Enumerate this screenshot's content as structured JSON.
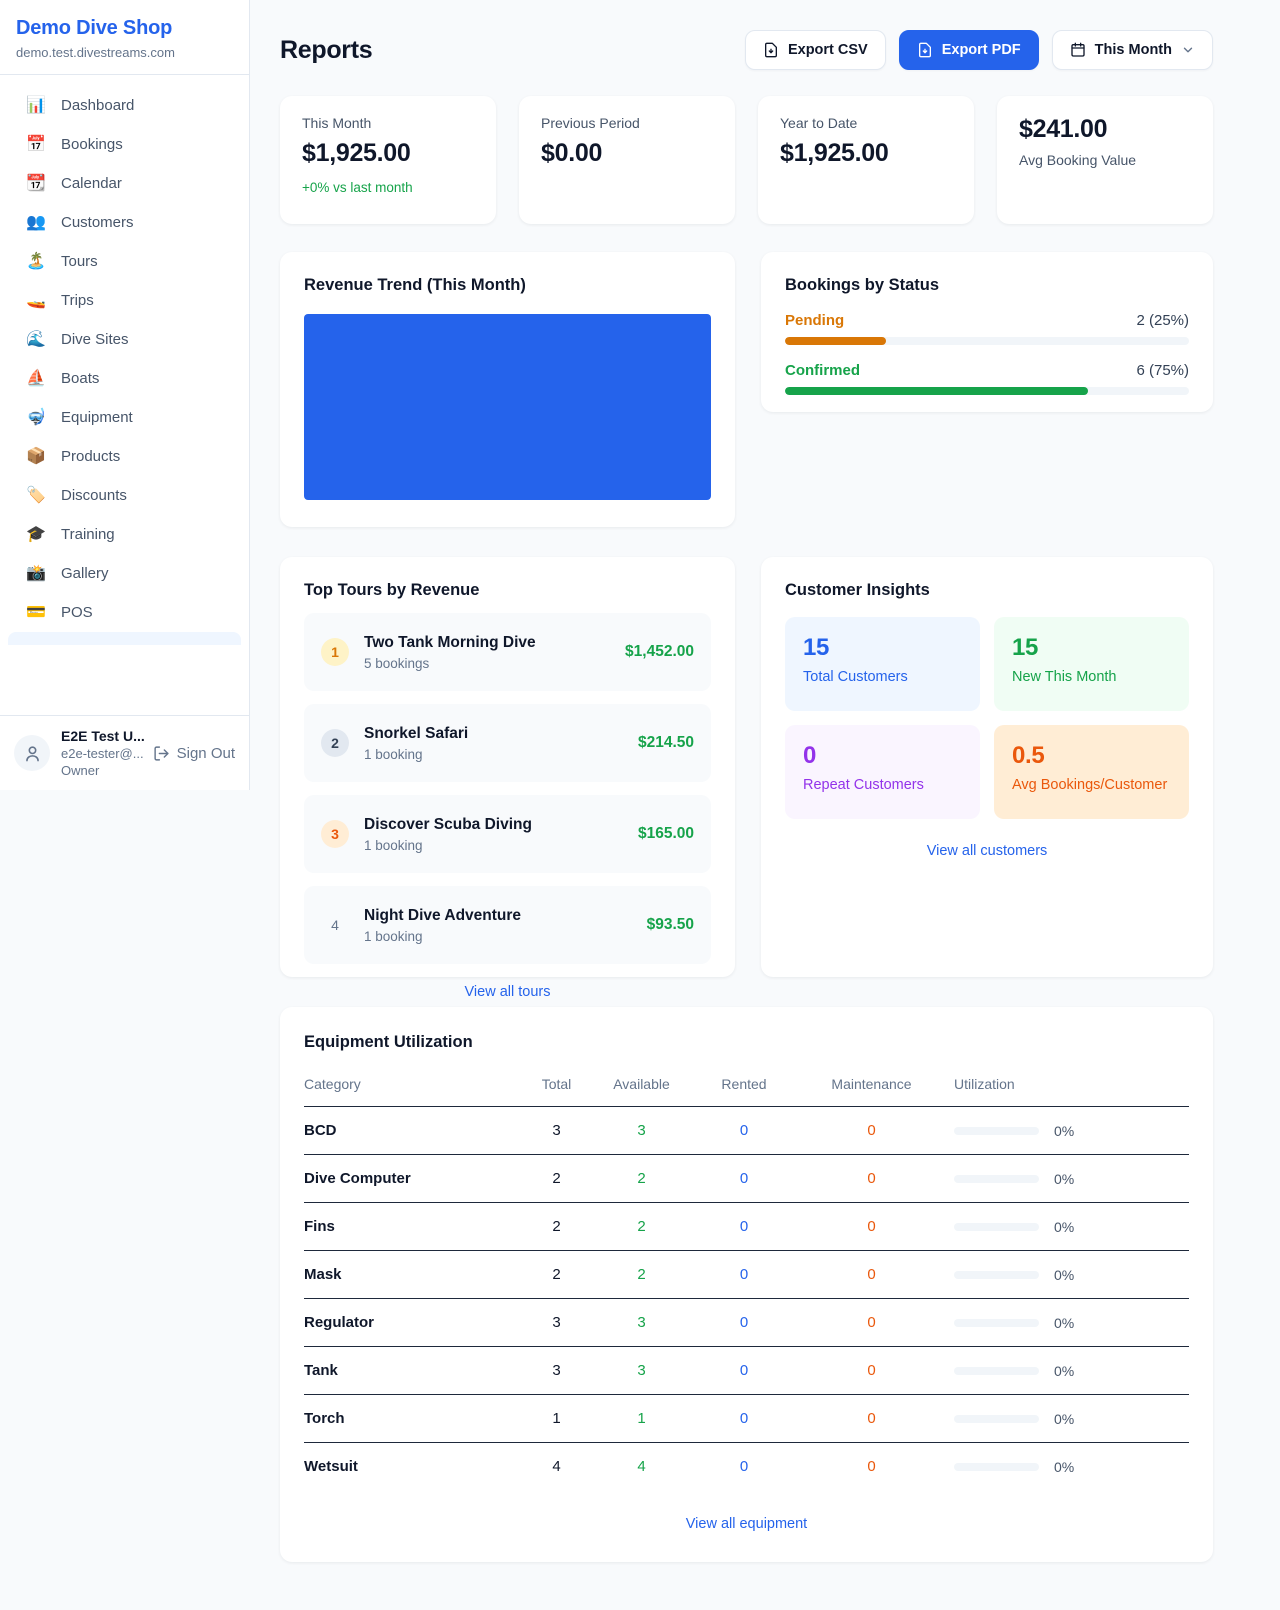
{
  "colors": {
    "accent": "#2563eb",
    "green": "#16a34a",
    "amber": "#d97706",
    "orange": "#ea580c",
    "purple": "#9333ea",
    "chart_fill": "#2563eb"
  },
  "sidebar": {
    "shop_name": "Demo Dive Shop",
    "shop_domain": "demo.test.divestreams.com",
    "items": [
      {
        "label": "Dashboard",
        "icon": "📊"
      },
      {
        "label": "Bookings",
        "icon": "📅"
      },
      {
        "label": "Calendar",
        "icon": "📆"
      },
      {
        "label": "Customers",
        "icon": "👥"
      },
      {
        "label": "Tours",
        "icon": "🏝️"
      },
      {
        "label": "Trips",
        "icon": "🚤"
      },
      {
        "label": "Dive Sites",
        "icon": "🌊"
      },
      {
        "label": "Boats",
        "icon": "⛵"
      },
      {
        "label": "Equipment",
        "icon": "🤿"
      },
      {
        "label": "Products",
        "icon": "📦"
      },
      {
        "label": "Discounts",
        "icon": "🏷️"
      },
      {
        "label": "Training",
        "icon": "🎓"
      },
      {
        "label": "Gallery",
        "icon": "📸"
      },
      {
        "label": "POS",
        "icon": "💳"
      }
    ],
    "user": {
      "name": "E2E Test U...",
      "email": "e2e-tester@...",
      "role": "Owner",
      "sign_out": "Sign Out"
    }
  },
  "header": {
    "title": "Reports",
    "export_csv": "Export CSV",
    "export_pdf": "Export PDF",
    "period": "This Month"
  },
  "stats": [
    {
      "label": "This Month",
      "value": "$1,925.00",
      "delta": "+0% vs last month"
    },
    {
      "label": "Previous Period",
      "value": "$0.00"
    },
    {
      "label": "Year to Date",
      "value": "$1,925.00"
    },
    {
      "label": "Avg Booking Value",
      "value": "$241.00"
    }
  ],
  "revenue_trend": {
    "title": "Revenue Trend (This Month)"
  },
  "bookings_by_status": {
    "title": "Bookings by Status",
    "rows": [
      {
        "label": "Pending",
        "value": "2 (25%)",
        "percent": 25
      },
      {
        "label": "Confirmed",
        "value": "6 (75%)",
        "percent": 75
      }
    ]
  },
  "top_tours": {
    "title": "Top Tours by Revenue",
    "view_all": "View all tours",
    "rows": [
      {
        "rank": "1",
        "name": "Two Tank Morning Dive",
        "bookings": "5 bookings",
        "revenue": "$1,452.00"
      },
      {
        "rank": "2",
        "name": "Snorkel Safari",
        "bookings": "1 booking",
        "revenue": "$214.50"
      },
      {
        "rank": "3",
        "name": "Discover Scuba Diving",
        "bookings": "1 booking",
        "revenue": "$165.00"
      },
      {
        "rank": "4",
        "name": "Night Dive Adventure",
        "bookings": "1 booking",
        "revenue": "$93.50"
      }
    ]
  },
  "customer_insights": {
    "title": "Customer Insights",
    "view_all": "View all customers",
    "boxes": [
      {
        "value": "15",
        "label": "Total Customers"
      },
      {
        "value": "15",
        "label": "New This Month"
      },
      {
        "value": "0",
        "label": "Repeat Customers"
      },
      {
        "value": "0.5",
        "label": "Avg Bookings/Customer"
      }
    ]
  },
  "equipment": {
    "title": "Equipment Utilization",
    "view_all": "View all equipment",
    "columns": [
      "Category",
      "Total",
      "Available",
      "Rented",
      "Maintenance",
      "Utilization"
    ],
    "rows": [
      {
        "category": "BCD",
        "total": "3",
        "available": "3",
        "rented": "0",
        "maintenance": "0",
        "utilization": "0%"
      },
      {
        "category": "Dive Computer",
        "total": "2",
        "available": "2",
        "rented": "0",
        "maintenance": "0",
        "utilization": "0%"
      },
      {
        "category": "Fins",
        "total": "2",
        "available": "2",
        "rented": "0",
        "maintenance": "0",
        "utilization": "0%"
      },
      {
        "category": "Mask",
        "total": "2",
        "available": "2",
        "rented": "0",
        "maintenance": "0",
        "utilization": "0%"
      },
      {
        "category": "Regulator",
        "total": "3",
        "available": "3",
        "rented": "0",
        "maintenance": "0",
        "utilization": "0%"
      },
      {
        "category": "Tank",
        "total": "3",
        "available": "3",
        "rented": "0",
        "maintenance": "0",
        "utilization": "0%"
      },
      {
        "category": "Torch",
        "total": "1",
        "available": "1",
        "rented": "0",
        "maintenance": "0",
        "utilization": "0%"
      },
      {
        "category": "Wetsuit",
        "total": "4",
        "available": "4",
        "rented": "0",
        "maintenance": "0",
        "utilization": "0%"
      }
    ]
  }
}
